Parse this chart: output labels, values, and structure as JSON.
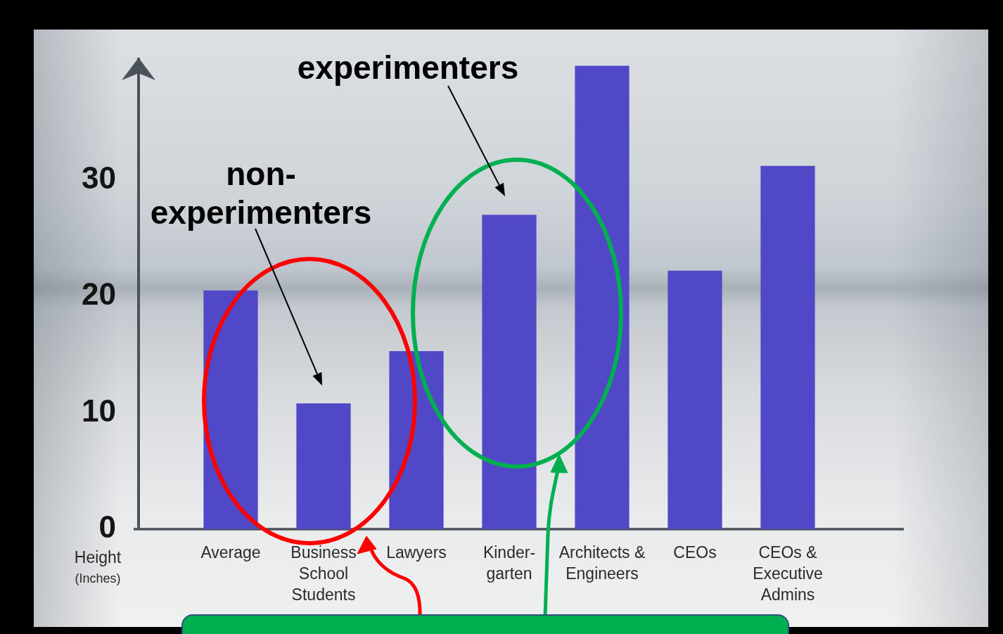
{
  "chart_data": {
    "type": "bar",
    "categories": [
      "Average",
      "Business School Students",
      "Lawyers",
      "Kinder-garten",
      "Architects & Engineers",
      "CEOs",
      "CEOs & Executive Admins"
    ],
    "values": [
      20.5,
      10.8,
      15.3,
      27,
      39.8,
      22.2,
      31.2
    ],
    "color": "#5048c6",
    "ylabel": "Height (Inches)",
    "ylim": [
      0,
      40.5
    ],
    "yticks": [
      0,
      10,
      20,
      30
    ],
    "annotations": [
      "experimenters",
      "non-experimenters"
    ]
  }
}
